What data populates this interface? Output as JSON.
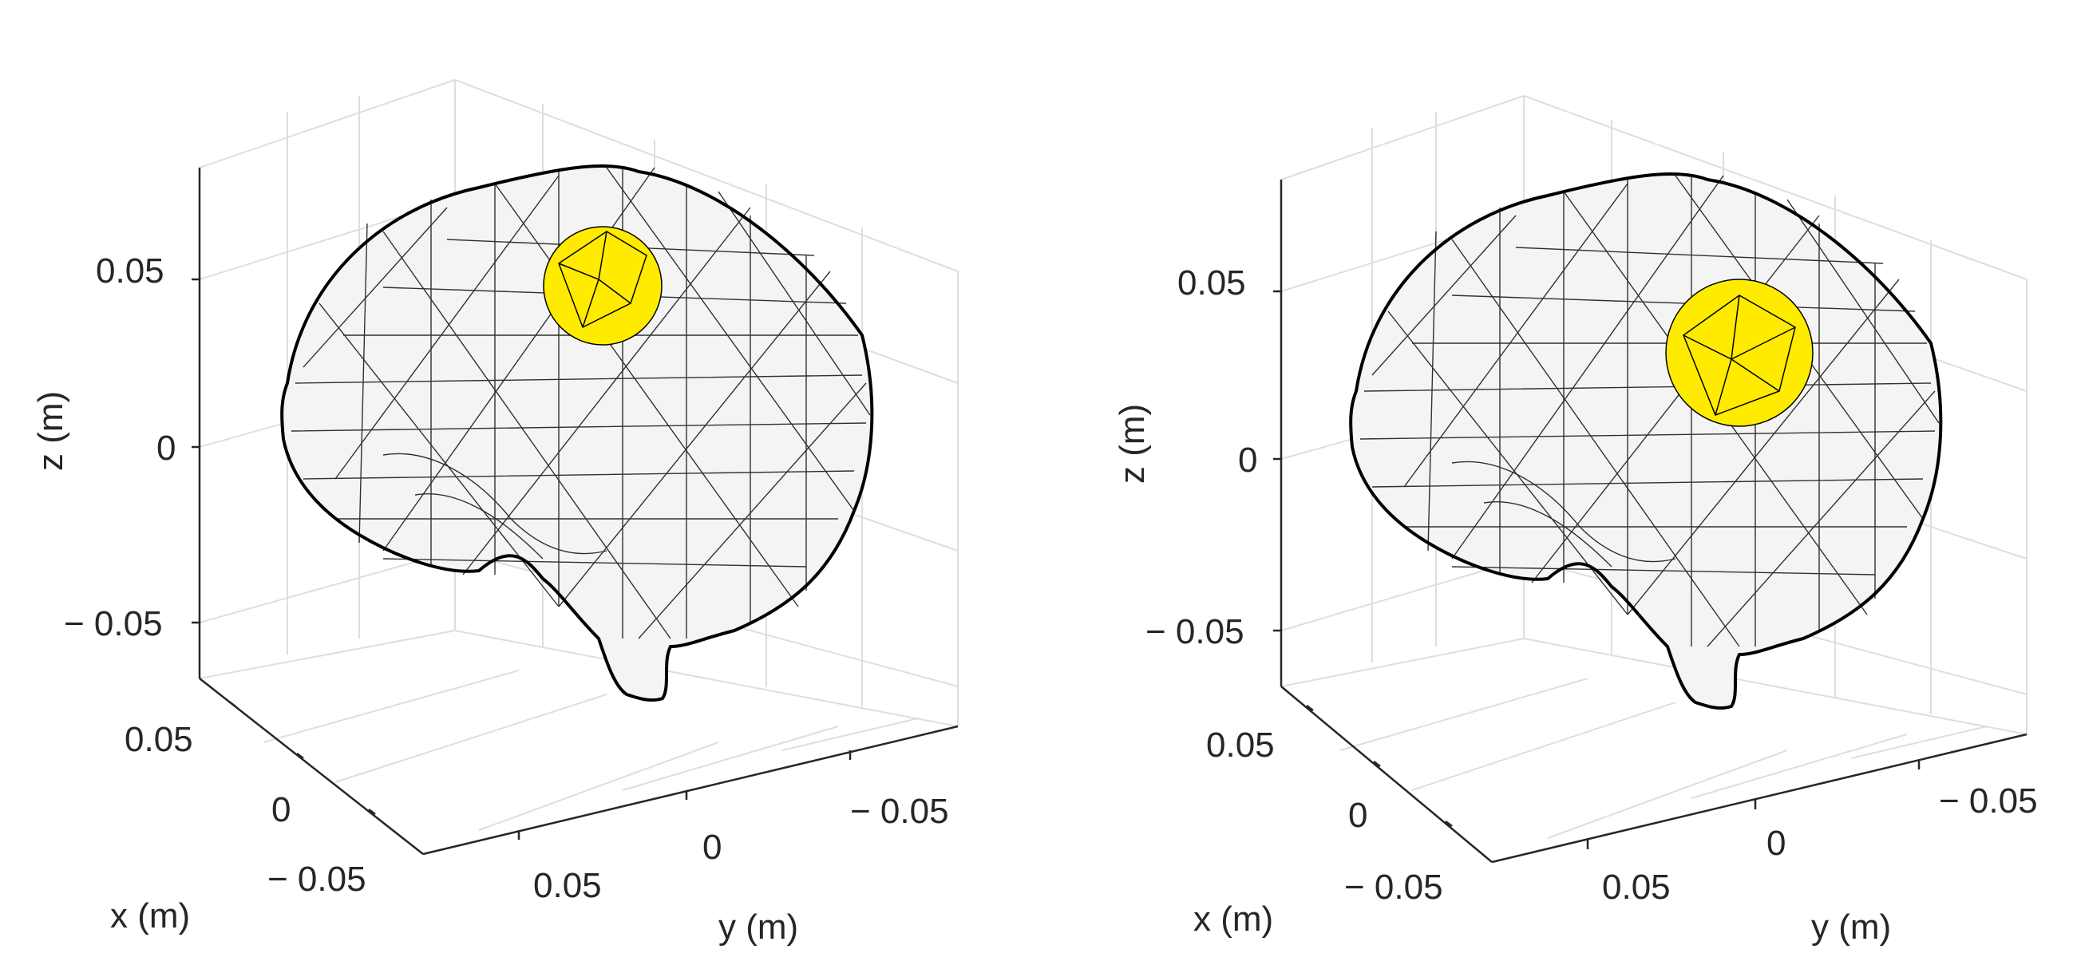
{
  "panels": [
    {
      "id": "left",
      "z_label": "z (m)",
      "x_label": "x (m)",
      "y_label": "y (m)",
      "z_ticks": [
        "0.05",
        "0",
        "− 0.05"
      ],
      "x_ticks": [
        "0.05",
        "0",
        "− 0.05"
      ],
      "y_ticks": [
        "0.05",
        "0",
        "− 0.05"
      ],
      "highlight_color": "#ffeb00"
    },
    {
      "id": "right",
      "z_label": "z (m)",
      "x_label": "x (m)",
      "y_label": "y (m)",
      "z_ticks": [
        "0.05",
        "0",
        "− 0.05"
      ],
      "x_ticks": [
        "0.05",
        "0",
        "− 0.05"
      ],
      "y_ticks": [
        "0.05",
        "0",
        "− 0.05"
      ],
      "highlight_color": "#ffeb00"
    }
  ],
  "style": {
    "mesh_color": "#000000",
    "grid_color": "#d9d9d9",
    "axis_color": "#262626"
  }
}
